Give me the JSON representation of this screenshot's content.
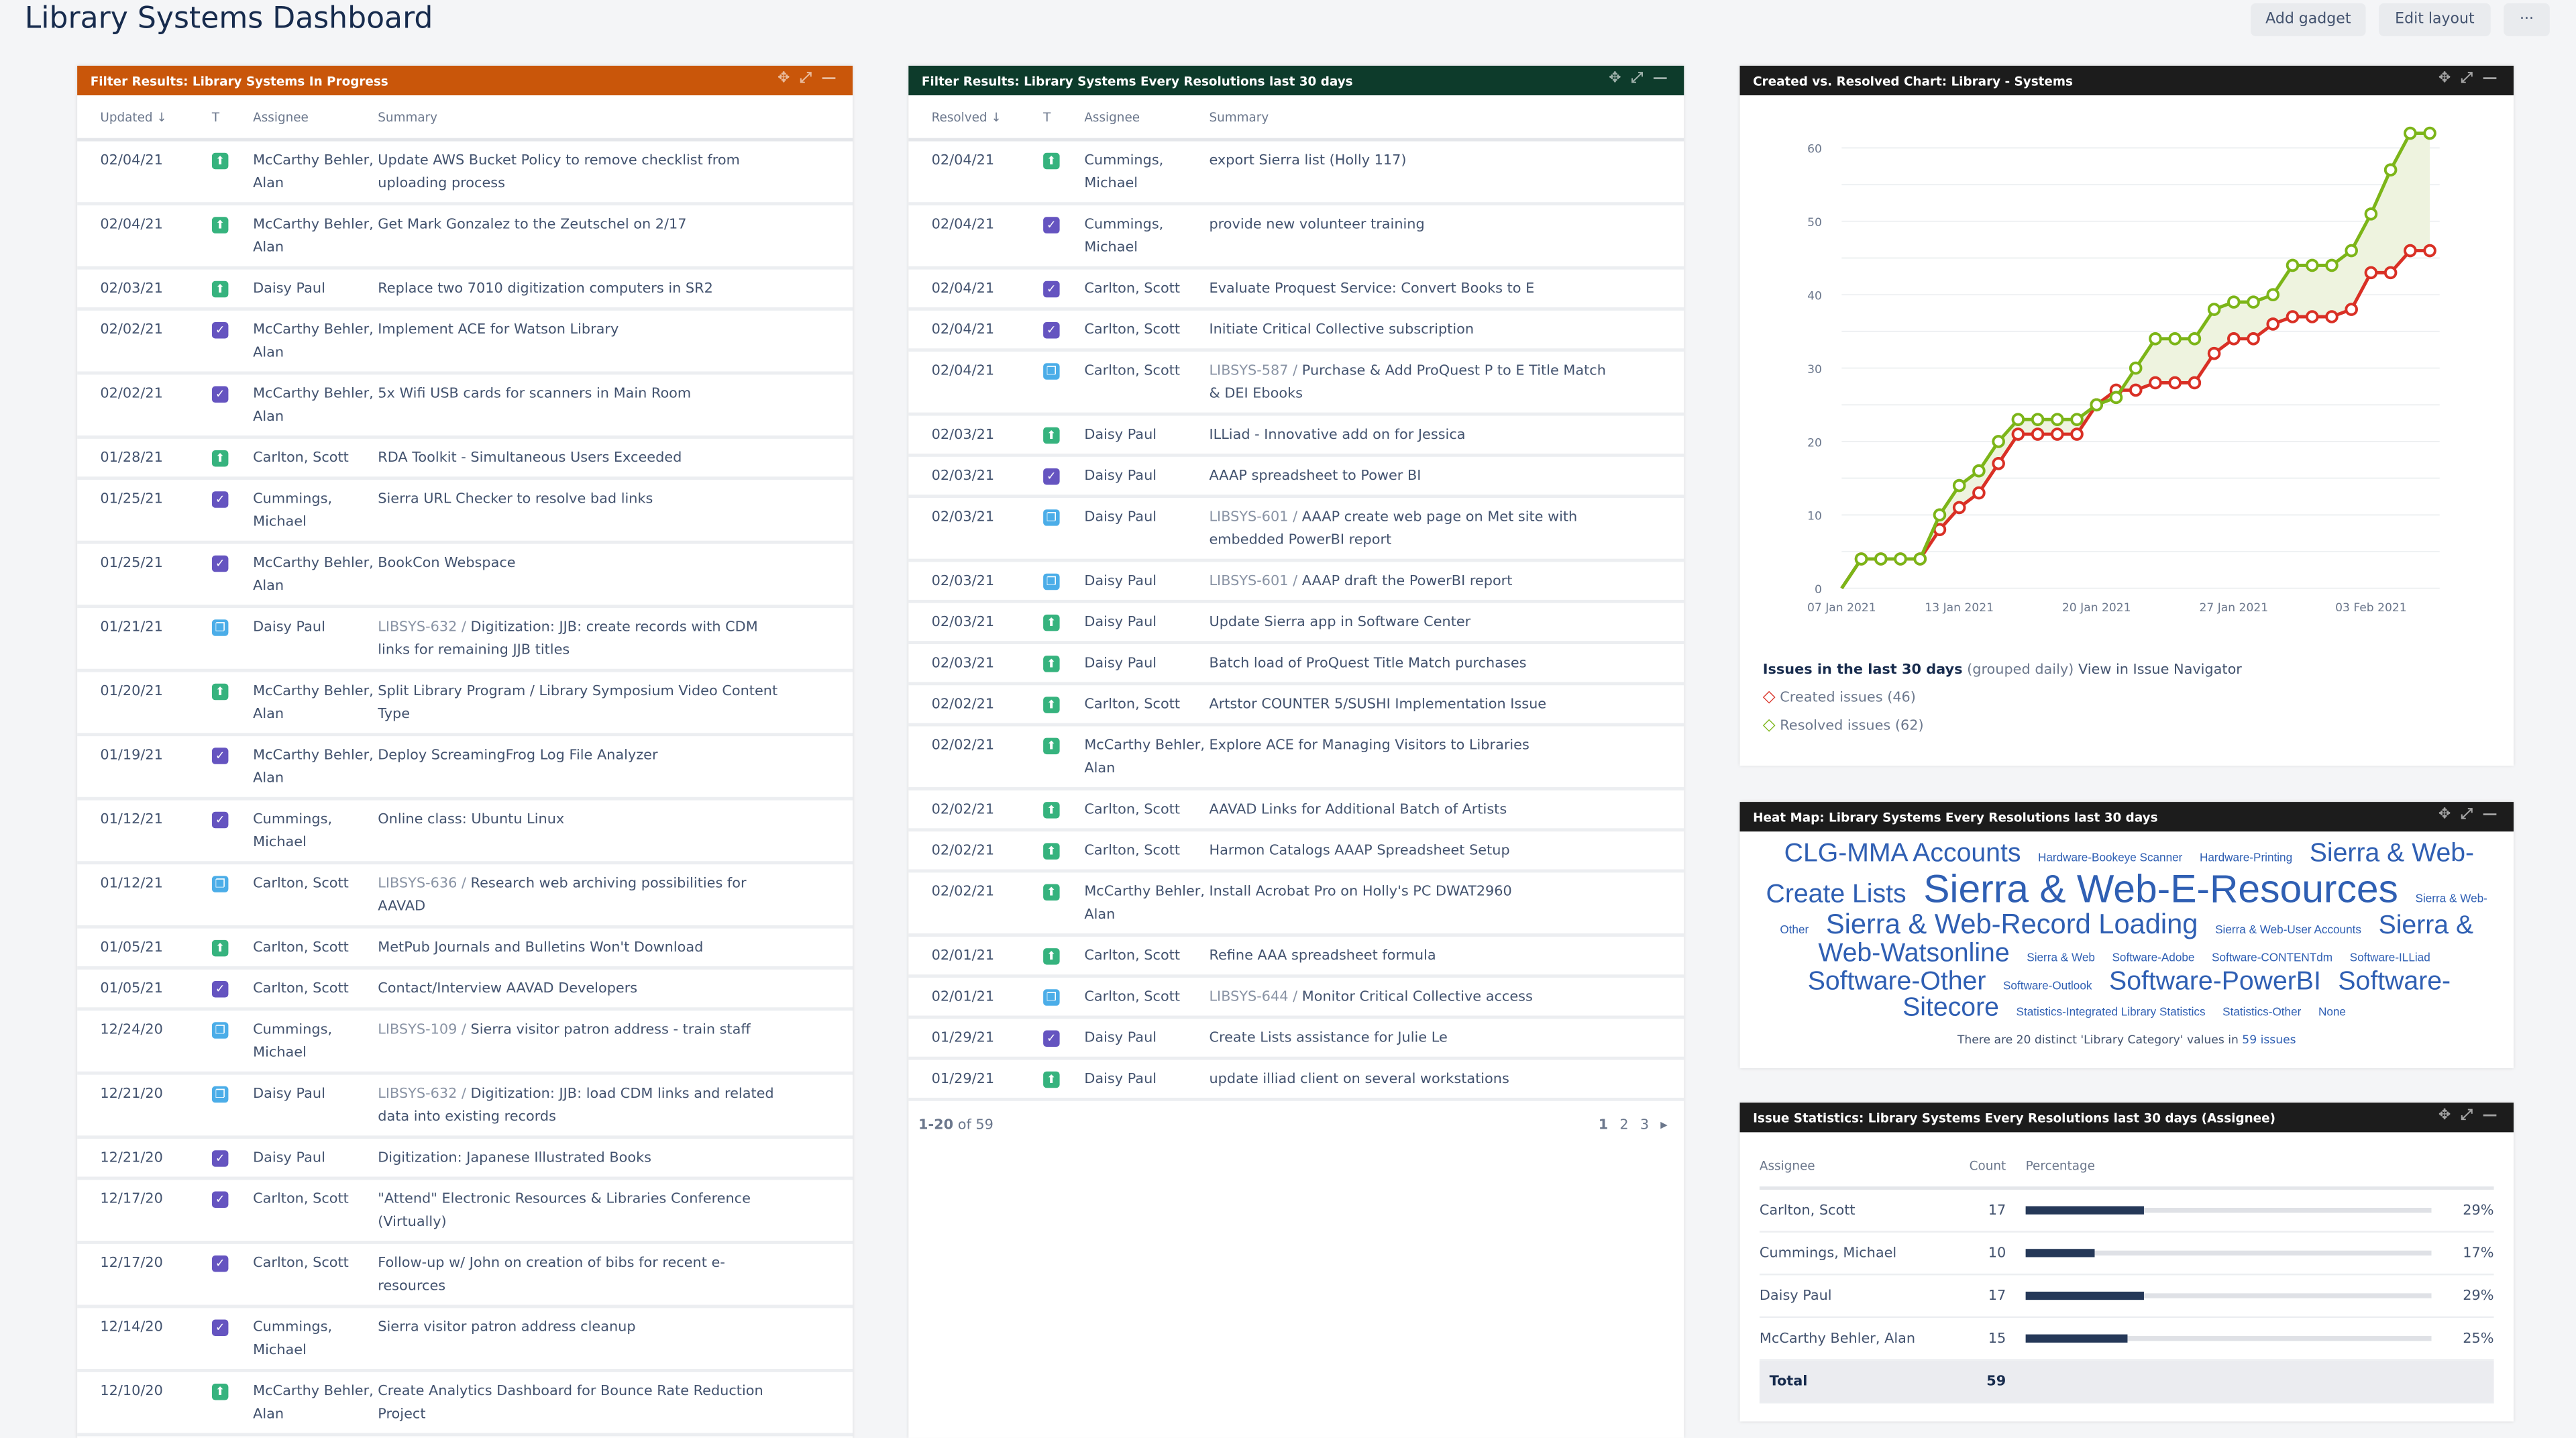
{
  "page": {
    "title": "Library Systems Dashboard",
    "add_gadget": "Add gadget",
    "edit_layout": "Edit layout",
    "more": "···"
  },
  "icons": {
    "story": {
      "color": "#36b37e",
      "glyph": "⬆"
    },
    "task": {
      "color": "#6554c0",
      "glyph": "✓"
    },
    "subtask": {
      "color": "#4bade8",
      "glyph": "❐"
    }
  },
  "colors": {
    "in_progress_header": "#c9560a",
    "resolutions_header": "#0d3b2b",
    "dark_header": "#1c1c1c",
    "created": "#d93025",
    "resolved": "#7cb518"
  },
  "in_progress": {
    "title": "Filter Results: Library Systems In Progress",
    "columns": [
      "Updated ↓",
      "T",
      "Assignee",
      "Summary"
    ],
    "rows": [
      {
        "date": "02/04/21",
        "type": "story",
        "assignee": "McCarthy Behler, Alan",
        "key": "",
        "summary": "Update AWS Bucket Policy to remove checklist from uploading process"
      },
      {
        "date": "02/04/21",
        "type": "story",
        "assignee": "McCarthy Behler, Alan",
        "key": "",
        "summary": "Get Mark Gonzalez to the Zeutschel on 2/17"
      },
      {
        "date": "02/03/21",
        "type": "story",
        "assignee": "Daisy Paul",
        "key": "",
        "summary": "Replace two 7010 digitization computers in SR2"
      },
      {
        "date": "02/02/21",
        "type": "task",
        "assignee": "McCarthy Behler, Alan",
        "key": "",
        "summary": "Implement ACE for Watson Library"
      },
      {
        "date": "02/02/21",
        "type": "task",
        "assignee": "McCarthy Behler, Alan",
        "key": "",
        "summary": "5x Wifi USB cards for scanners in Main Room"
      },
      {
        "date": "01/28/21",
        "type": "story",
        "assignee": "Carlton, Scott",
        "key": "",
        "summary": "RDA Toolkit - Simultaneous Users Exceeded"
      },
      {
        "date": "01/25/21",
        "type": "task",
        "assignee": "Cummings, Michael",
        "key": "",
        "summary": "Sierra URL Checker to resolve bad links"
      },
      {
        "date": "01/25/21",
        "type": "task",
        "assignee": "McCarthy Behler, Alan",
        "key": "",
        "summary": "BookCon Webspace"
      },
      {
        "date": "01/21/21",
        "type": "subtask",
        "assignee": "Daisy Paul",
        "key": "LIBSYS-632 /",
        "summary": "Digitization: JJB: create records with CDM links for remaining JJB titles"
      },
      {
        "date": "01/20/21",
        "type": "story",
        "assignee": "McCarthy Behler, Alan",
        "key": "",
        "summary": "Split Library Program / Library Symposium Video Content Type"
      },
      {
        "date": "01/19/21",
        "type": "task",
        "assignee": "McCarthy Behler, Alan",
        "key": "",
        "summary": "Deploy ScreamingFrog Log File Analyzer"
      },
      {
        "date": "01/12/21",
        "type": "task",
        "assignee": "Cummings, Michael",
        "key": "",
        "summary": "Online class: Ubuntu Linux"
      },
      {
        "date": "01/12/21",
        "type": "subtask",
        "assignee": "Carlton, Scott",
        "key": "LIBSYS-636 /",
        "summary": "Research web archiving possibilities for AAVAD"
      },
      {
        "date": "01/05/21",
        "type": "story",
        "assignee": "Carlton, Scott",
        "key": "",
        "summary": "MetPub Journals and Bulletins Won't Download"
      },
      {
        "date": "01/05/21",
        "type": "task",
        "assignee": "Carlton, Scott",
        "key": "",
        "summary": "Contact/Interview AAVAD Developers"
      },
      {
        "date": "12/24/20",
        "type": "subtask",
        "assignee": "Cummings, Michael",
        "key": "LIBSYS-109 /",
        "summary": "Sierra visitor patron address - train staff"
      },
      {
        "date": "12/21/20",
        "type": "subtask",
        "assignee": "Daisy Paul",
        "key": "LIBSYS-632 /",
        "summary": "Digitization: JJB: load CDM links and related data into existing records"
      },
      {
        "date": "12/21/20",
        "type": "task",
        "assignee": "Daisy Paul",
        "key": "",
        "summary": "Digitization: Japanese Illustrated Books"
      },
      {
        "date": "12/17/20",
        "type": "task",
        "assignee": "Carlton, Scott",
        "key": "",
        "summary": "\"Attend\" Electronic Resources & Libraries Conference (Virtually)"
      },
      {
        "date": "12/17/20",
        "type": "task",
        "assignee": "Carlton, Scott",
        "key": "",
        "summary": "Follow-up w/ John on creation of bibs for recent e-resources"
      },
      {
        "date": "12/14/20",
        "type": "task",
        "assignee": "Cummings, Michael",
        "key": "",
        "summary": "Sierra visitor patron address cleanup"
      },
      {
        "date": "12/10/20",
        "type": "story",
        "assignee": "McCarthy Behler, Alan",
        "key": "",
        "summary": "Create Analytics Dashboard for Bounce Rate Reduction Project"
      }
    ]
  },
  "resolutions": {
    "title": "Filter Results: Library Systems Every Resolutions last 30 days",
    "columns": [
      "Resolved ↓",
      "T",
      "Assignee",
      "Summary"
    ],
    "rows": [
      {
        "date": "02/04/21",
        "type": "story",
        "assignee": "Cummings, Michael",
        "key": "",
        "summary": "export Sierra list (Holly 117)"
      },
      {
        "date": "02/04/21",
        "type": "task",
        "assignee": "Cummings, Michael",
        "key": "",
        "summary": "provide new volunteer training"
      },
      {
        "date": "02/04/21",
        "type": "task",
        "assignee": "Carlton, Scott",
        "key": "",
        "summary": "Evaluate Proquest Service: Convert Books to E"
      },
      {
        "date": "02/04/21",
        "type": "task",
        "assignee": "Carlton, Scott",
        "key": "",
        "summary": "Initiate Critical Collective subscription"
      },
      {
        "date": "02/04/21",
        "type": "subtask",
        "assignee": "Carlton, Scott",
        "key": "LIBSYS-587 /",
        "summary": "Purchase & Add ProQuest P to E Title Match & DEI Ebooks"
      },
      {
        "date": "02/03/21",
        "type": "story",
        "assignee": "Daisy Paul",
        "key": "",
        "summary": "ILLiad - Innovative add on for Jessica"
      },
      {
        "date": "02/03/21",
        "type": "task",
        "assignee": "Daisy Paul",
        "key": "",
        "summary": "AAAP spreadsheet to Power BI"
      },
      {
        "date": "02/03/21",
        "type": "subtask",
        "assignee": "Daisy Paul",
        "key": "LIBSYS-601 /",
        "summary": "AAAP create web page on Met site with embedded PowerBI report"
      },
      {
        "date": "02/03/21",
        "type": "subtask",
        "assignee": "Daisy Paul",
        "key": "LIBSYS-601 /",
        "summary": "AAAP draft the PowerBI report"
      },
      {
        "date": "02/03/21",
        "type": "story",
        "assignee": "Daisy Paul",
        "key": "",
        "summary": "Update Sierra app in Software Center"
      },
      {
        "date": "02/03/21",
        "type": "story",
        "assignee": "Daisy Paul",
        "key": "",
        "summary": "Batch load of ProQuest Title Match purchases"
      },
      {
        "date": "02/02/21",
        "type": "story",
        "assignee": "Carlton, Scott",
        "key": "",
        "summary": "Artstor COUNTER 5/SUSHI Implementation Issue"
      },
      {
        "date": "02/02/21",
        "type": "story",
        "assignee": "McCarthy Behler, Alan",
        "key": "",
        "summary": "Explore ACE for Managing Visitors to Libraries"
      },
      {
        "date": "02/02/21",
        "type": "story",
        "assignee": "Carlton, Scott",
        "key": "",
        "summary": "AAVAD Links for Additional Batch of Artists"
      },
      {
        "date": "02/02/21",
        "type": "story",
        "assignee": "Carlton, Scott",
        "key": "",
        "summary": "Harmon Catalogs AAAP Spreadsheet Setup"
      },
      {
        "date": "02/02/21",
        "type": "story",
        "assignee": "McCarthy Behler, Alan",
        "key": "",
        "summary": "Install Acrobat Pro on Holly's PC DWAT2960"
      },
      {
        "date": "02/01/21",
        "type": "story",
        "assignee": "Carlton, Scott",
        "key": "",
        "summary": "Refine AAA spreadsheet formula"
      },
      {
        "date": "02/01/21",
        "type": "subtask",
        "assignee": "Carlton, Scott",
        "key": "LIBSYS-644 /",
        "summary": "Monitor Critical Collective access"
      },
      {
        "date": "01/29/21",
        "type": "task",
        "assignee": "Daisy Paul",
        "key": "",
        "summary": "Create Lists assistance for Julie Le"
      },
      {
        "date": "01/29/21",
        "type": "story",
        "assignee": "Daisy Paul",
        "key": "",
        "summary": "update illiad client on several workstations"
      }
    ],
    "pager": {
      "range": "1-20",
      "of": "of 59",
      "pages": [
        "1",
        "2",
        "3"
      ],
      "next": "▸"
    }
  },
  "chart": {
    "title": "Created vs. Resolved Chart: Library - Systems",
    "legend_title": "Issues in the last 30 days",
    "legend_sub": "(grouped daily)",
    "legend_link": "View in Issue Navigator",
    "created_label": "Created issues (46)",
    "resolved_label": "Resolved issues (62)"
  },
  "chart_data": {
    "type": "line",
    "xlabel": "",
    "ylabel": "",
    "ylim": [
      0,
      60
    ],
    "yticks": [
      0,
      10,
      20,
      30,
      40,
      50,
      60
    ],
    "grid": true,
    "legend": "bottom",
    "xticks": [
      {
        "date": "2021-01-07",
        "label": "07 Jan 2021"
      },
      {
        "date": "2021-01-13",
        "label": "13 Jan 2021"
      },
      {
        "date": "2021-01-20",
        "label": "20 Jan 2021"
      },
      {
        "date": "2021-01-27",
        "label": "27 Jan 2021"
      },
      {
        "date": "2021-02-03",
        "label": "03 Feb 2021"
      }
    ],
    "x_start": "2021-01-07",
    "series": [
      {
        "name": "Created issues (46)",
        "color": "#d93025",
        "values": [
          0,
          4,
          4,
          4,
          4,
          8,
          11,
          13,
          17,
          21,
          21,
          21,
          21,
          25,
          27,
          27,
          28,
          28,
          28,
          32,
          34,
          34,
          36,
          37,
          37,
          37,
          38,
          43,
          43,
          46,
          46
        ]
      },
      {
        "name": "Resolved issues (62)",
        "color": "#7cb518",
        "values": [
          0,
          4,
          4,
          4,
          4,
          10,
          14,
          16,
          20,
          23,
          23,
          23,
          23,
          25,
          26,
          30,
          34,
          34,
          34,
          38,
          39,
          39,
          40,
          44,
          44,
          44,
          46,
          51,
          57,
          62,
          62
        ]
      }
    ]
  },
  "heatmap": {
    "title": "Heat Map: Library Systems Every Resolutions last 30 days",
    "words": [
      {
        "t": "CLG-MMA Accounts",
        "s": 16
      },
      {
        "t": "Hardware-Bookeye Scanner",
        "s": 7
      },
      {
        "t": "Hardware-Printing",
        "s": 7
      },
      {
        "t": "Sierra & Web-Create Lists",
        "s": 16
      },
      {
        "t": "Sierra & Web-E-Resources",
        "s": 24
      },
      {
        "t": "Sierra & Web-Other",
        "s": 7
      },
      {
        "t": "Sierra & Web-Record Loading",
        "s": 17
      },
      {
        "t": "Sierra & Web-User Accounts",
        "s": 7
      },
      {
        "t": "Sierra & Web-Watsonline",
        "s": 16
      },
      {
        "t": "Sierra & Web",
        "s": 7
      },
      {
        "t": "Software-Adobe",
        "s": 7
      },
      {
        "t": "Software-CONTENTdm",
        "s": 7
      },
      {
        "t": "Software-ILLiad",
        "s": 7
      },
      {
        "t": "Software-Other",
        "s": 16
      },
      {
        "t": "Software-Outlook",
        "s": 7
      },
      {
        "t": "Software-PowerBI",
        "s": 16
      },
      {
        "t": "Software-Sitecore",
        "s": 16
      },
      {
        "t": "Statistics-Integrated Library Statistics",
        "s": 7
      },
      {
        "t": "Statistics-Other",
        "s": 7
      },
      {
        "t": "None",
        "s": 7
      }
    ],
    "footer": "There are 20 distinct 'Library Category' values in",
    "footer_link": "59 issues"
  },
  "stats": {
    "title": "Issue Statistics: Library Systems Every Resolutions last 30 days (Assignee)",
    "columns": [
      "Assignee",
      "Count",
      "Percentage"
    ],
    "rows": [
      {
        "name": "Carlton, Scott",
        "count": "17",
        "pct": "29%",
        "value": 29
      },
      {
        "name": "Cummings, Michael",
        "count": "10",
        "pct": "17%",
        "value": 17
      },
      {
        "name": "Daisy Paul",
        "count": "17",
        "pct": "29%",
        "value": 29
      },
      {
        "name": "McCarthy Behler, Alan",
        "count": "15",
        "pct": "25%",
        "value": 25
      }
    ],
    "total_label": "Total",
    "total": "59"
  }
}
